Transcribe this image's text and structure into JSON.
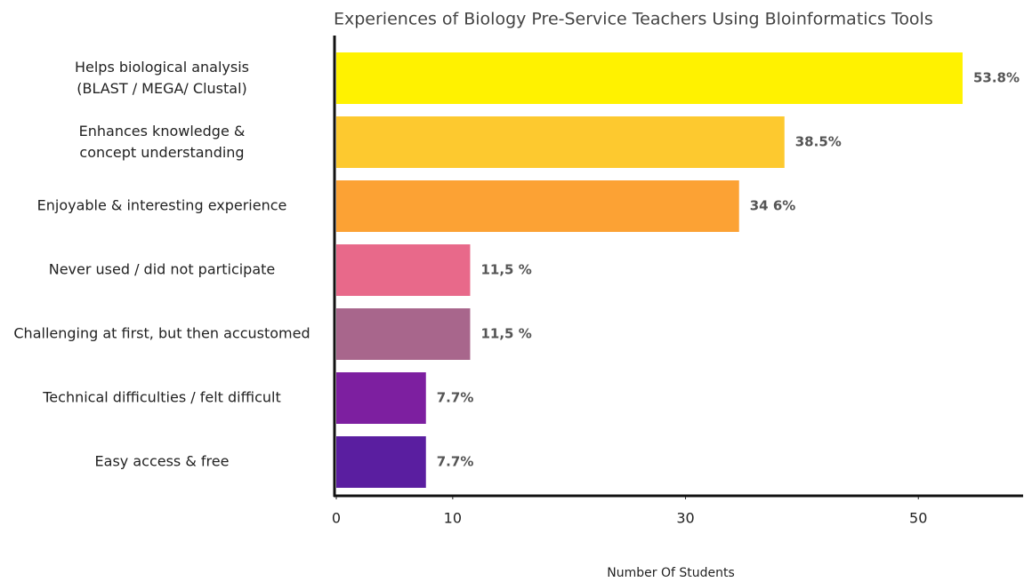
{
  "chart_data": {
    "type": "barh",
    "title": "Experiences of Biology Pre-Service Teachers Using Bloinformatics Tools",
    "x_label": "Number Of Students",
    "categories": [
      "Helps biological analysis\n(BLAST / MEGA/ Clustal)",
      "Enhances knowledge &\nconcept understanding",
      "Enjoyable & interesting experience",
      "Never used / did not participate",
      "Challenging at first, but then accustomed",
      "Technical difficulties / felt difficult",
      "Easy access & free"
    ],
    "values": [
      53.8,
      38.5,
      34.6,
      11.5,
      11.5,
      7.7,
      7.7
    ],
    "value_labels": [
      "53.8%",
      "38.5%",
      "34 6%",
      "11,5 %",
      "11,5 %",
      "7.7%",
      "7.7%"
    ],
    "colors": [
      "#fff200",
      "#fdc92f",
      "#fca234",
      "#e8698a",
      "#a8668c",
      "#7d1fa0",
      "#5a1ea0"
    ],
    "xlim": [
      0,
      59
    ],
    "xticks": [
      0,
      10,
      30,
      50
    ]
  }
}
